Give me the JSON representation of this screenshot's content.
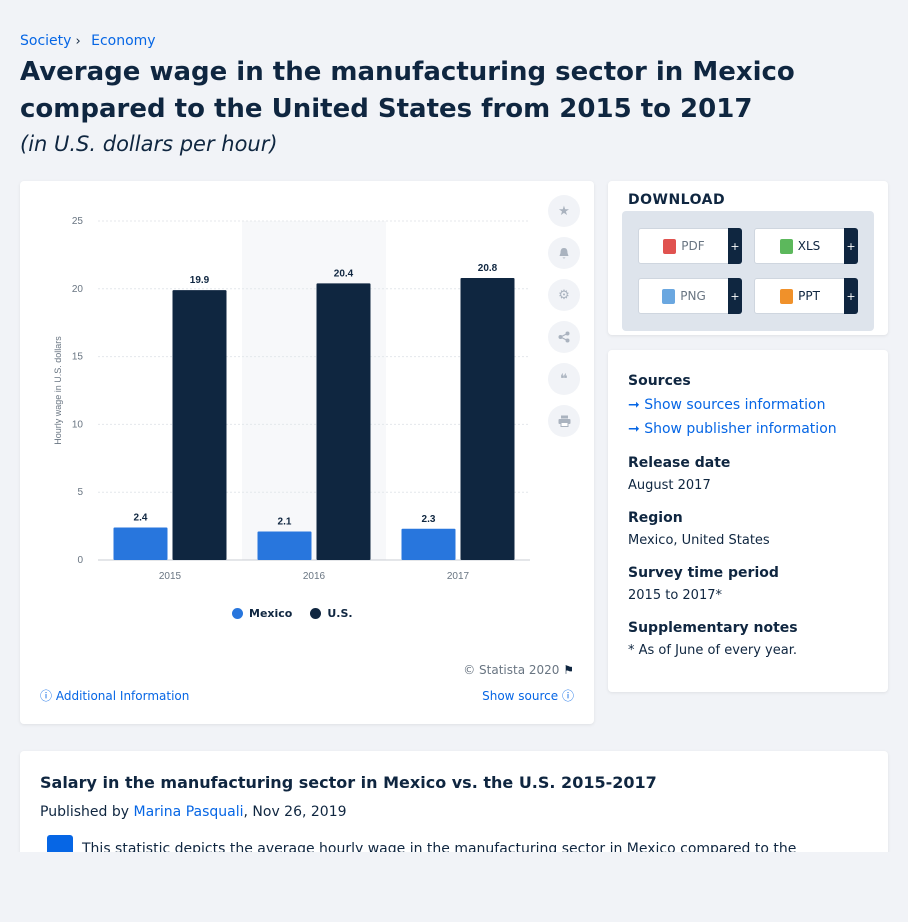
{
  "breadcrumb": [
    "Society",
    "Economy"
  ],
  "title": "Average wage in the manufacturing sector in Mexico compared to the United States from 2015 to 2017",
  "subtitle": "(in U.S. dollars per hour)",
  "chart_data": {
    "type": "bar",
    "categories": [
      "2015",
      "2016",
      "2017"
    ],
    "series": [
      {
        "name": "Mexico",
        "values": [
          2.4,
          2.1,
          2.3
        ],
        "color": "#2876dd"
      },
      {
        "name": "U.S.",
        "values": [
          19.9,
          20.4,
          20.8
        ],
        "color": "#0f2640"
      }
    ],
    "ylabel": "Hourly wage in U.S. dollars",
    "ylim": [
      0,
      25
    ],
    "yticks": [
      0,
      5,
      10,
      15,
      20,
      25
    ],
    "grid": true,
    "legend": "bottom"
  },
  "chart_footer": {
    "copyright": "© Statista 2020",
    "additional_info": "Additional Information",
    "show_source": "Show source"
  },
  "download": {
    "title": "DOWNLOAD",
    "formats": [
      "PDF",
      "XLS",
      "PNG",
      "PPT"
    ],
    "plus": "+"
  },
  "info": {
    "sources_label": "Sources",
    "show_sources": "Show sources information",
    "show_publisher": "Show publisher information",
    "release_label": "Release date",
    "release_value": "August 2017",
    "region_label": "Region",
    "region_value": "Mexico, United States",
    "period_label": "Survey time period",
    "period_value": "2015 to 2017*",
    "notes_label": "Supplementary notes",
    "notes_value": "* As of June of every year."
  },
  "description": {
    "title": "Salary in the manufacturing sector in Mexico vs. the U.S. 2015-2017",
    "published_by": "Published by",
    "author": "Marina Pasquali",
    "date": ", Nov 26, 2019",
    "text": "This statistic depicts the average hourly wage in the manufacturing sector in Mexico compared to the"
  }
}
